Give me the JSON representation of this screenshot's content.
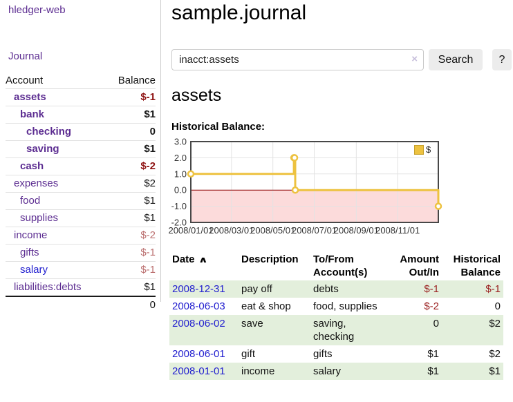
{
  "colors": {
    "link_purple": "#5c2d91",
    "link_blue": "#2320cf",
    "negative_strong": "#8e1212",
    "negative_soft": "#bb6f6f",
    "negative_medium": "#9a1f1f",
    "row_green": "#e3efdc",
    "chart_line": "#edc240",
    "chart_zero_line": "#8b0000",
    "chart_negative_fill": "#fcdbdb",
    "chart_grid": "#e3e3e3",
    "chart_border": "#474747"
  },
  "sidebar": {
    "brand": "hledger-web",
    "journal_label": "Journal",
    "accounts_table": {
      "headers": [
        "Account",
        "Balance"
      ],
      "rows": [
        {
          "account": "assets",
          "balance": "$-1",
          "level": 1,
          "bold": true
        },
        {
          "account": "bank",
          "balance": "$1",
          "level": 2,
          "bold": true
        },
        {
          "account": "checking",
          "balance": "0",
          "level": 3,
          "bold": true
        },
        {
          "account": "saving",
          "balance": "$1",
          "level": 3,
          "bold": true
        },
        {
          "account": "cash",
          "balance": "$-2",
          "level": 2,
          "bold": true
        },
        {
          "account": "expenses",
          "balance": "$2",
          "level": 1,
          "bold": false
        },
        {
          "account": "food",
          "balance": "$1",
          "level": 2,
          "bold": false
        },
        {
          "account": "supplies",
          "balance": "$1",
          "level": 2,
          "bold": false
        },
        {
          "account": "income",
          "balance": "$-2",
          "level": 1,
          "bold": false
        },
        {
          "account": "gifts",
          "balance": "$-1",
          "level": 2,
          "bold": false
        },
        {
          "account": "salary",
          "balance": "$-1",
          "level": 2,
          "bold": false,
          "visited": false
        },
        {
          "account": "liabilities:debts",
          "balance": "$1",
          "level": 1,
          "bold": false
        }
      ],
      "total": "0"
    }
  },
  "main": {
    "title": "sample.journal",
    "search": {
      "value": "inacct:assets",
      "clear_icon": "×",
      "button_label": "Search",
      "help_label": "?"
    },
    "account_heading": "assets",
    "chart_title": "Historical Balance:"
  },
  "chart_data": {
    "type": "line",
    "step": true,
    "title": "Historical Balance:",
    "x_range": [
      "2008-01-01",
      "2008-12-31"
    ],
    "ylim": [
      -2,
      3
    ],
    "y_ticks": [
      3,
      2,
      1,
      0,
      -1,
      -2
    ],
    "x_ticks": [
      {
        "date": "2008-01-01",
        "label": "2008/01/01"
      },
      {
        "date": "2008-03-01",
        "label": "2008/03/01"
      },
      {
        "date": "2008-05-01",
        "label": "2008/05/01"
      },
      {
        "date": "2008-07-01",
        "label": "2008/07/01"
      },
      {
        "date": "2008-09-01",
        "label": "2008/09/01"
      },
      {
        "date": "2008-11-01",
        "label": "2008/11/01"
      }
    ],
    "series": [
      {
        "name": "$",
        "color": "#edc240",
        "points": [
          [
            "2008-01-01",
            1
          ],
          [
            "2008-06-01",
            2
          ],
          [
            "2008-06-02",
            2
          ],
          [
            "2008-06-03",
            0
          ],
          [
            "2008-12-31",
            -1
          ]
        ]
      }
    ],
    "legend_position": "top-right",
    "negative_region_shaded": true,
    "grid": true
  },
  "register_table": {
    "sort_icon": "∧",
    "headers": [
      {
        "line1": "Date",
        "line2": "",
        "align": "left",
        "sorted": "asc"
      },
      {
        "line1": "Description",
        "line2": "",
        "align": "left"
      },
      {
        "line1": "To/From",
        "line2": "Account(s)",
        "align": "left"
      },
      {
        "line1": "Amount",
        "line2": "Out/In",
        "align": "right"
      },
      {
        "line1": "Historical",
        "line2": "Balance",
        "align": "right"
      }
    ],
    "rows": [
      {
        "date": "2008-12-31",
        "description": "pay off",
        "accounts": "debts",
        "amount": "$-1",
        "balance": "$-1"
      },
      {
        "date": "2008-06-03",
        "description": "eat & shop",
        "accounts": "food, supplies",
        "amount": "$-2",
        "balance": "0"
      },
      {
        "date": "2008-06-02",
        "description": "save",
        "accounts": "saving, checking",
        "amount": "0",
        "balance": "$2"
      },
      {
        "date": "2008-06-01",
        "description": "gift",
        "accounts": "gifts",
        "amount": "$1",
        "balance": "$2"
      },
      {
        "date": "2008-01-01",
        "description": "income",
        "accounts": "salary",
        "amount": "$1",
        "balance": "$1"
      }
    ]
  }
}
